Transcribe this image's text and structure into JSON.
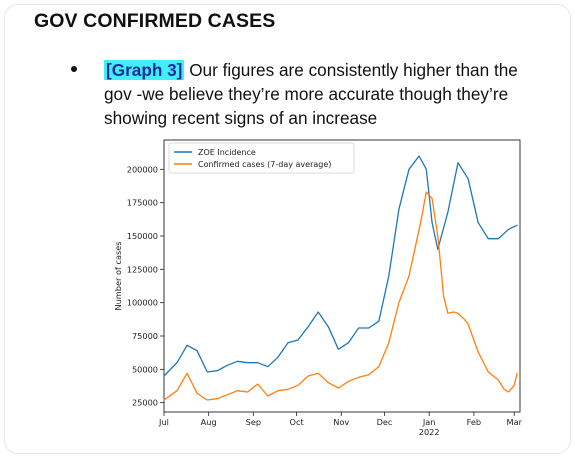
{
  "heading": "GOV CONFIRMED CASES",
  "bullet": {
    "tag": "[Graph 3]",
    "text": "Our figures are consistently higher than the gov -we believe they’re more accurate though they’re showing recent signs of an increase"
  },
  "colors": {
    "zoe": "#1f77b4",
    "confirmed": "#ff7f0e",
    "highlight": "#3ff0fa"
  },
  "chart_data": {
    "type": "line",
    "title": "",
    "xlabel": "",
    "ylabel": "Number of cases",
    "x_range": [
      "2021-07-01",
      "2022-03-05"
    ],
    "ylim": [
      18000,
      222000
    ],
    "yticks": [
      25000,
      50000,
      75000,
      100000,
      125000,
      150000,
      175000,
      200000
    ],
    "ytick_labels": [
      "25000",
      "50000",
      "75000",
      "100000",
      "125000",
      "150000",
      "175000",
      "200000"
    ],
    "xticks": [
      {
        "date": "2021-07-01",
        "label": "Jul"
      },
      {
        "date": "2021-08-01",
        "label": "Aug"
      },
      {
        "date": "2021-09-01",
        "label": "Sep"
      },
      {
        "date": "2021-10-01",
        "label": "Oct"
      },
      {
        "date": "2021-11-01",
        "label": "Nov"
      },
      {
        "date": "2021-12-01",
        "label": "Dec"
      },
      {
        "date": "2022-01-01",
        "label": "Jan"
      },
      {
        "date": "2022-02-01",
        "label": "Feb"
      },
      {
        "date": "2022-03-01",
        "label": "Mar"
      }
    ],
    "year_label": "2022",
    "legend_position": "top-left",
    "grid": false,
    "series": [
      {
        "name": "ZOE Incidence",
        "color": "#1f77b4",
        "x": [
          "2021-07-01",
          "2021-07-10",
          "2021-07-17",
          "2021-07-24",
          "2021-07-31",
          "2021-08-07",
          "2021-08-14",
          "2021-08-21",
          "2021-08-28",
          "2021-09-04",
          "2021-09-11",
          "2021-09-18",
          "2021-09-25",
          "2021-10-02",
          "2021-10-09",
          "2021-10-16",
          "2021-10-23",
          "2021-10-30",
          "2021-11-06",
          "2021-11-13",
          "2021-11-20",
          "2021-11-27",
          "2021-12-04",
          "2021-12-11",
          "2021-12-18",
          "2021-12-25",
          "2021-12-30",
          "2022-01-03",
          "2022-01-07",
          "2022-01-14",
          "2022-01-21",
          "2022-01-28",
          "2022-02-04",
          "2022-02-11",
          "2022-02-18",
          "2022-02-25",
          "2022-03-03"
        ],
        "y": [
          45000,
          55000,
          68000,
          64000,
          48000,
          49000,
          53000,
          56000,
          55000,
          55000,
          52000,
          59000,
          70000,
          72000,
          82000,
          93000,
          82000,
          65000,
          70000,
          81000,
          81000,
          86000,
          120000,
          170000,
          200000,
          210000,
          200000,
          160000,
          140000,
          168000,
          205000,
          193000,
          160000,
          148000,
          148000,
          155000,
          158000
        ]
      },
      {
        "name": "Confirmed cases (7-day average)",
        "color": "#ff7f0e",
        "x": [
          "2021-07-01",
          "2021-07-10",
          "2021-07-17",
          "2021-07-24",
          "2021-07-31",
          "2021-08-07",
          "2021-08-14",
          "2021-08-21",
          "2021-08-28",
          "2021-09-04",
          "2021-09-11",
          "2021-09-18",
          "2021-09-25",
          "2021-10-02",
          "2021-10-09",
          "2021-10-16",
          "2021-10-23",
          "2021-10-30",
          "2021-11-06",
          "2021-11-13",
          "2021-11-20",
          "2021-11-27",
          "2021-12-04",
          "2021-12-11",
          "2021-12-18",
          "2021-12-22",
          "2021-12-26",
          "2021-12-30",
          "2022-01-03",
          "2022-01-07",
          "2022-01-11",
          "2022-01-14",
          "2022-01-18",
          "2022-01-21",
          "2022-01-25",
          "2022-01-28",
          "2022-02-04",
          "2022-02-11",
          "2022-02-18",
          "2022-02-22",
          "2022-02-25",
          "2022-03-01",
          "2022-03-03"
        ],
        "y": [
          27000,
          34000,
          47000,
          32000,
          27000,
          28000,
          31000,
          34000,
          33000,
          39000,
          30000,
          34000,
          35000,
          38000,
          45000,
          47000,
          40000,
          36000,
          41000,
          44000,
          46000,
          52000,
          70000,
          100000,
          120000,
          140000,
          160000,
          183000,
          178000,
          150000,
          105000,
          92000,
          93000,
          92000,
          88000,
          84000,
          63000,
          48000,
          42000,
          35000,
          33000,
          38000,
          47000
        ]
      }
    ]
  }
}
